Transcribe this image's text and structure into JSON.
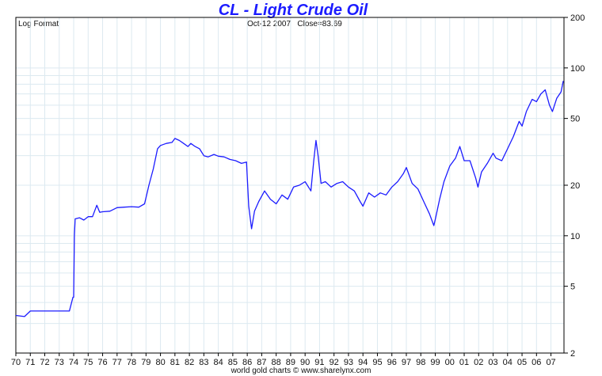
{
  "title": "CL  -  Light Crude Oil",
  "info_left": "Log Format",
  "info_date": "Oct-12  2007",
  "info_close": "Close=83.69",
  "footer": "world gold charts © www.sharelynx.com",
  "colors": {
    "line": "#1c1cff",
    "grid": "#dce9f0",
    "title": "#1c1cff",
    "frame": "#000000"
  },
  "chart_data": {
    "type": "line",
    "title": "CL  -  Light Crude Oil",
    "y_scale": "log",
    "ylim": [
      2,
      200
    ],
    "y_ticks": [
      2,
      5,
      10,
      20,
      50,
      100,
      200
    ],
    "xlim": [
      1970.0,
      2007.9
    ],
    "x_tick_labels": [
      "70",
      "71",
      "72",
      "73",
      "74",
      "75",
      "76",
      "77",
      "78",
      "79",
      "80",
      "81",
      "82",
      "83",
      "84",
      "85",
      "86",
      "87",
      "88",
      "89",
      "90",
      "91",
      "92",
      "93",
      "94",
      "95",
      "96",
      "97",
      "98",
      "99",
      "00",
      "01",
      "02",
      "03",
      "04",
      "05",
      "06",
      "07"
    ],
    "grid": true,
    "series": [
      {
        "x": [
          1970.0,
          1970.6,
          1971.0,
          1973.7,
          1973.95,
          1974.0,
          1974.05,
          1974.1,
          1974.4,
          1974.7,
          1975.0,
          1975.3,
          1975.6,
          1975.8,
          1976.0,
          1976.5,
          1977.0,
          1977.5,
          1978.0,
          1978.5,
          1978.9,
          1979.2,
          1979.5,
          1979.8,
          1980.0,
          1980.4,
          1980.8,
          1981.0,
          1981.3,
          1981.6,
          1981.9,
          1982.1,
          1982.4,
          1982.7,
          1983.0,
          1983.3,
          1983.7,
          1984.0,
          1984.4,
          1984.8,
          1985.2,
          1985.6,
          1985.95,
          1986.1,
          1986.3,
          1986.5,
          1986.8,
          1987.2,
          1987.6,
          1988.0,
          1988.4,
          1988.8,
          1989.2,
          1989.6,
          1990.0,
          1990.4,
          1990.6,
          1990.75,
          1990.9,
          1991.1,
          1991.4,
          1991.8,
          1992.2,
          1992.6,
          1993.0,
          1993.4,
          1993.8,
          1994.0,
          1994.4,
          1994.8,
          1995.2,
          1995.6,
          1996.0,
          1996.4,
          1996.8,
          1997.0,
          1997.4,
          1997.8,
          1998.2,
          1998.6,
          1998.9,
          1999.0,
          1999.3,
          1999.6,
          2000.0,
          2000.4,
          2000.7,
          2001.0,
          2001.4,
          2001.8,
          2001.95,
          2002.2,
          2002.6,
          2003.0,
          2003.2,
          2003.6,
          2004.0,
          2004.4,
          2004.8,
          2005.0,
          2005.3,
          2005.7,
          2006.0,
          2006.3,
          2006.6,
          2006.9,
          2007.1,
          2007.4,
          2007.7,
          2007.85
        ],
        "y": [
          3.35,
          3.3,
          3.56,
          3.56,
          4.3,
          4.3,
          10.0,
          12.6,
          12.8,
          12.4,
          13.0,
          13.0,
          15.2,
          13.8,
          13.9,
          14.0,
          14.7,
          14.8,
          14.9,
          14.8,
          15.5,
          20.0,
          25.0,
          33.0,
          34.5,
          35.5,
          36.0,
          38.0,
          37.0,
          35.5,
          34.0,
          35.5,
          34.0,
          33.0,
          30.0,
          29.5,
          30.5,
          29.8,
          29.5,
          28.5,
          28.0,
          27.0,
          27.5,
          15.0,
          11.0,
          14.0,
          16.0,
          18.5,
          16.5,
          15.5,
          17.5,
          16.5,
          19.5,
          20.0,
          21.0,
          18.5,
          28.0,
          37.0,
          30.0,
          20.5,
          21.0,
          19.5,
          20.5,
          21.0,
          19.5,
          18.5,
          16.0,
          15.0,
          18.0,
          17.0,
          18.0,
          17.5,
          19.5,
          21.0,
          23.5,
          25.5,
          20.5,
          19.0,
          16.0,
          13.5,
          11.5,
          12.5,
          16.5,
          21.0,
          26.0,
          29.0,
          34.0,
          28.0,
          28.0,
          22.0,
          19.5,
          24.0,
          27.0,
          31.0,
          29.0,
          28.0,
          33.0,
          39.0,
          48.0,
          45.0,
          55.0,
          65.0,
          63.0,
          70.0,
          74.0,
          60.0,
          55.0,
          66.0,
          72.0,
          83.69
        ]
      }
    ]
  }
}
